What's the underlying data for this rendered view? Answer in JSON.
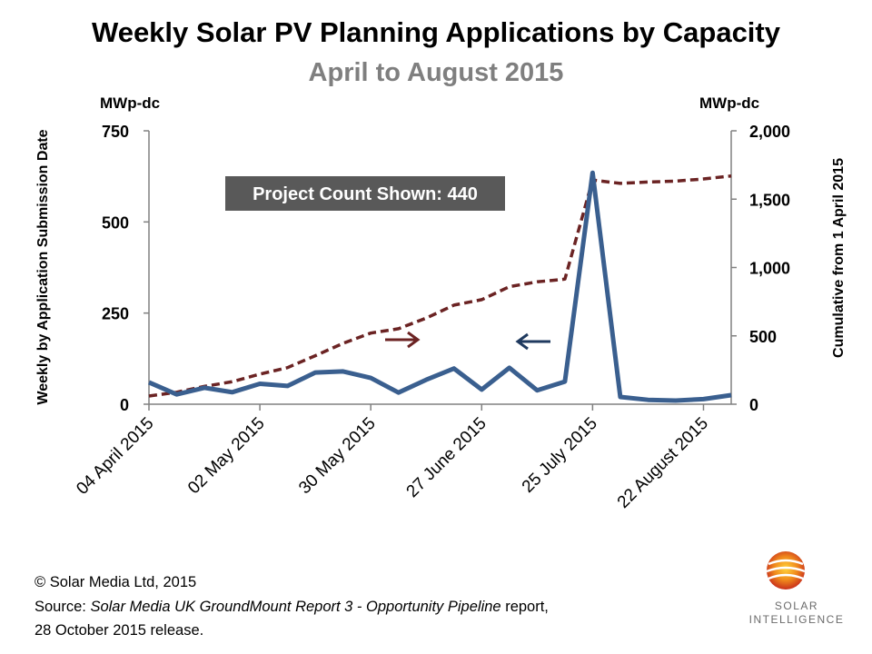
{
  "title": "Weekly Solar PV Planning Applications by Capacity",
  "subtitle": "April to August 2015",
  "units": {
    "left": "MWp-dc",
    "right": "MWp-dc"
  },
  "annotation": "Project Count Shown: 440",
  "footer": {
    "copyright": "© Solar Media Ltd, 2015",
    "source_prefix": "Source: ",
    "source_italic": "Solar Media UK GroundMount Report 3 - Opportunity Pipeline",
    "source_suffix": " report,",
    "release": "28 October 2015 release."
  },
  "logo": {
    "line1": "SOLAR",
    "line2": "INTELLIGENCE"
  },
  "colors": {
    "weekly": "#3a5f8f",
    "cumulative": "#6b2323",
    "axis": "#808080"
  },
  "chart_data": {
    "type": "line",
    "x": [
      "04 April 2015",
      "11 April 2015",
      "18 April 2015",
      "25 April 2015",
      "02 May 2015",
      "09 May 2015",
      "16 May 2015",
      "23 May 2015",
      "30 May 2015",
      "06 June 2015",
      "13 June 2015",
      "20 June 2015",
      "27 June 2015",
      "04 July 2015",
      "11 July 2015",
      "18 July 2015",
      "25 July 2015",
      "01 August 2015",
      "08 August 2015",
      "15 August 2015",
      "22 August 2015",
      "29 August 2015"
    ],
    "x_tick_labels": [
      "04 April 2015",
      "02 May 2015",
      "30 May 2015",
      "27 June 2015",
      "25 July 2015",
      "22 August 2015"
    ],
    "series": [
      {
        "axis": "left",
        "values": [
          60,
          27,
          45,
          33,
          56,
          50,
          87,
          90,
          72,
          32,
          67,
          98,
          40,
          100,
          38,
          62,
          635,
          20,
          12,
          10,
          14,
          25
        ]
      },
      {
        "axis": "right",
        "values": [
          60,
          88,
          130,
          165,
          220,
          268,
          355,
          445,
          520,
          552,
          630,
          725,
          765,
          860,
          895,
          915,
          1640,
          1615,
          1625,
          1632,
          1648,
          1670
        ]
      }
    ],
    "ylabel_left": "Weekly by Application Submission Date",
    "ylabel_right": "Cumulative from 1 April 2015",
    "ylim_left": [
      0,
      750
    ],
    "yticks_left": [
      "0",
      "250",
      "500",
      "750"
    ],
    "ylim_right": [
      0,
      2000
    ],
    "yticks_right": [
      "0",
      "500",
      "1,000",
      "1,500",
      "2,000"
    ],
    "grid": false,
    "legend": "none"
  }
}
